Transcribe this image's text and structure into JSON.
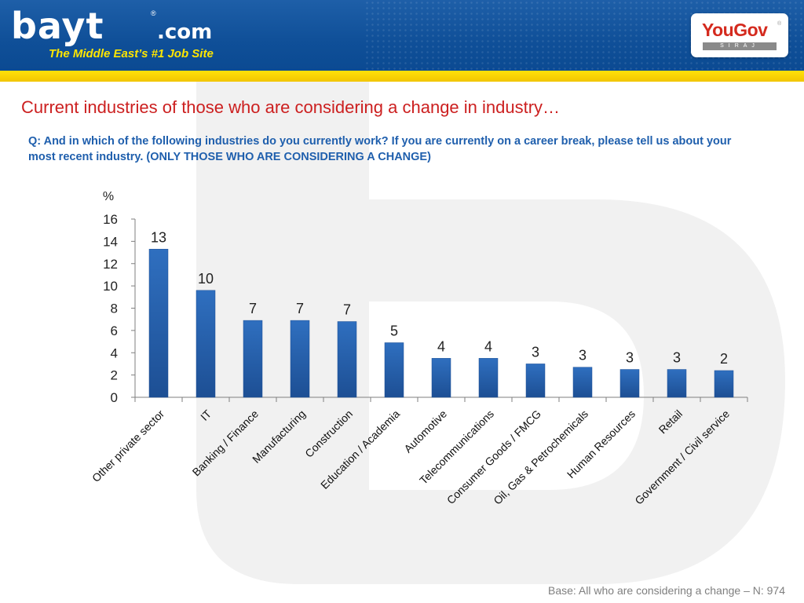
{
  "header": {
    "logo_text": "bayt",
    "logo_suffix": ".com",
    "logo_reg": "®",
    "tagline": "The Middle East’s #1 Job Site",
    "partner_name": "YouGov",
    "partner_reg": "®",
    "partner_sub": "SIRAJ"
  },
  "page": {
    "title": "Current industries of those who are considering a change in industry…",
    "question": "Q: And in which of the following industries do you currently work? If you are currently on a career break, please tell us about your most recent industry. (ONLY THOSE WHO ARE CONSIDERING A CHANGE)",
    "footer": "Base: All who are considering a change – N: 974"
  },
  "chart_data": {
    "type": "bar",
    "title": "",
    "xlabel": "",
    "ylabel": "%",
    "ylim": [
      0,
      16
    ],
    "yticks": [
      0,
      2,
      4,
      6,
      8,
      10,
      12,
      14,
      16
    ],
    "grid": false,
    "bar_color": "#2f6fbf",
    "categories": [
      "Other private sector",
      "IT",
      "Banking / Finance",
      "Manufacturing",
      "Construction",
      "Education / Academia",
      "Automotive",
      "Telecommunications",
      "Consumer Goods / FMCG",
      "Oil, Gas & Petrochemicals",
      "Human Resources",
      "Retail",
      "Government / Civil service"
    ],
    "values": [
      13.3,
      9.6,
      6.9,
      6.9,
      6.8,
      4.9,
      3.5,
      3.5,
      3.0,
      2.7,
      2.5,
      2.5,
      2.4
    ],
    "data_labels": [
      "13",
      "10",
      "7",
      "7",
      "7",
      "5",
      "4",
      "4",
      "3",
      "3",
      "3",
      "3",
      "2"
    ]
  }
}
